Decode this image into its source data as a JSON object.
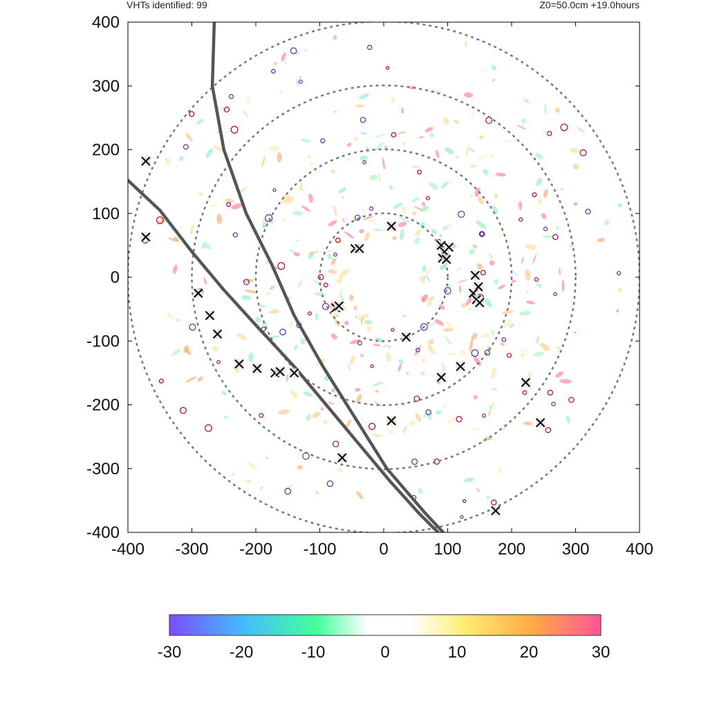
{
  "header": {
    "left_text": "VHTs identified: 99",
    "right_text": "Z0=50.0cm  +19.0hours"
  },
  "chart_data": {
    "type": "scatter",
    "title": "",
    "xlabel": "",
    "ylabel": "",
    "xlim": [
      -400,
      400
    ],
    "ylim": [
      -400,
      400
    ],
    "x_ticks": [
      "-400",
      "-300",
      "-200",
      "-100",
      "0",
      "100",
      "200",
      "300",
      "400"
    ],
    "y_ticks": [
      "400",
      "300",
      "200",
      "100",
      "0",
      "-100",
      "-200",
      "-300",
      "-400"
    ],
    "range_rings": [
      100,
      200,
      300,
      400
    ],
    "tracks": [
      {
        "points": [
          [
            -265,
            400
          ],
          [
            -268,
            300
          ],
          [
            -250,
            200
          ],
          [
            -215,
            100
          ],
          [
            -175,
            20
          ],
          [
            -140,
            -60
          ],
          [
            -95,
            -140
          ],
          [
            -45,
            -220
          ],
          [
            5,
            -300
          ],
          [
            65,
            -370
          ],
          [
            93,
            -400
          ]
        ]
      },
      {
        "points": [
          [
            -400,
            152
          ],
          [
            -350,
            105
          ],
          [
            -300,
            40
          ],
          [
            -250,
            -20
          ],
          [
            -200,
            -75
          ],
          [
            -140,
            -140
          ],
          [
            -90,
            -200
          ],
          [
            -40,
            -260
          ],
          [
            10,
            -320
          ],
          [
            55,
            -370
          ],
          [
            85,
            -400
          ]
        ]
      }
    ],
    "vht_markers": [
      [
        -372,
        182
      ],
      [
        -372,
        63
      ],
      [
        -290,
        -25
      ],
      [
        -272,
        -60
      ],
      [
        -260,
        -89
      ],
      [
        -226,
        -136
      ],
      [
        -198,
        -143
      ],
      [
        -170,
        -150
      ],
      [
        -162,
        -148
      ],
      [
        -140,
        -150
      ],
      [
        -75,
        -48
      ],
      [
        -70,
        -45
      ],
      [
        -45,
        45
      ],
      [
        -38,
        45
      ],
      [
        12,
        80
      ],
      [
        90,
        50
      ],
      [
        95,
        40
      ],
      [
        102,
        47
      ],
      [
        92,
        30
      ],
      [
        98,
        28
      ],
      [
        143,
        3
      ],
      [
        148,
        -15
      ],
      [
        140,
        -25
      ],
      [
        145,
        -35
      ],
      [
        150,
        -40
      ],
      [
        120,
        -140
      ],
      [
        90,
        -157
      ],
      [
        35,
        -94
      ],
      [
        12,
        -225
      ],
      [
        -65,
        -283
      ],
      [
        222,
        -165
      ],
      [
        245,
        -228
      ],
      [
        175,
        -366
      ]
    ],
    "colorbar": {
      "min": -30,
      "max": 30,
      "ticks": [
        "-30",
        "-20",
        "-10",
        "0",
        "10",
        "20",
        "30"
      ],
      "colors": [
        "#7b4dff",
        "#44bbff",
        "#44ff99",
        "#ffffff",
        "#ffee77",
        "#ffaa44",
        "#ff5599"
      ]
    },
    "grid": false,
    "legend": "none"
  }
}
